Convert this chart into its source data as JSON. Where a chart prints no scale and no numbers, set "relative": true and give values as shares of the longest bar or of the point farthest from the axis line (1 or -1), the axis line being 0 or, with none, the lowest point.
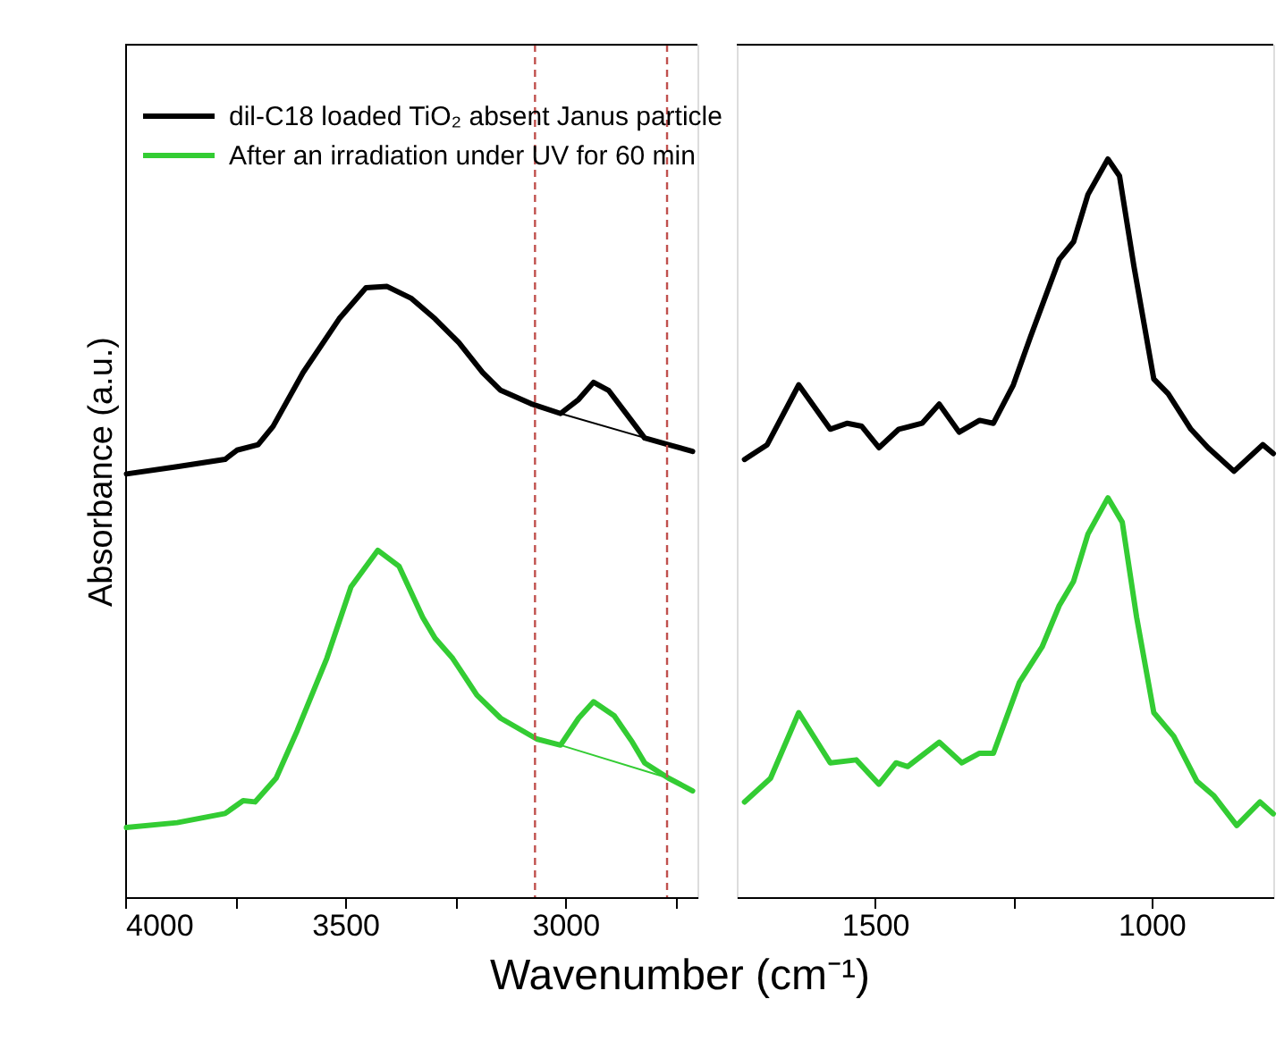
{
  "chart_data": [
    {
      "type": "line",
      "xlabel": "Wavenumber (cm⁻¹)",
      "ylabel": "Absorbance (a.u.)",
      "relative": true,
      "xlim": [
        4000,
        2700
      ],
      "xticks": [
        4000,
        3500,
        3000,
        {
          "value": 3750,
          "label": null
        },
        {
          "value": 3250,
          "label": null
        },
        {
          "value": 2750,
          "label": null
        }
      ],
      "tick_labels": "x",
      "legend": "top left",
      "line_style": "solid",
      "marker": "none",
      "ref_lines": [
        {
          "axis": "x",
          "value": 3069,
          "color": "#c0504d",
          "line_style": "dashed"
        },
        {
          "axis": "x",
          "value": 2769,
          "color": "#c0504d",
          "line_style": "dashed"
        }
      ],
      "series": [
        {
          "name": "dil-C18 loaded TiO₂ absent Janus particle",
          "color": "#000000",
          "x": [
            3997,
            3882,
            3773,
            3746,
            3698,
            3664,
            3596,
            3514,
            3453,
            3405,
            3351,
            3296,
            3242,
            3188,
            3147,
            3078,
            3011,
            2970,
            2936,
            2902,
            2861,
            2820,
            2766,
            2711
          ],
          "values": [
            0.693,
            0.705,
            0.717,
            0.732,
            0.741,
            0.771,
            0.859,
            0.947,
            0.998,
            1,
            0.981,
            0.947,
            0.908,
            0.859,
            0.83,
            0.808,
            0.792,
            0.815,
            0.843,
            0.83,
            0.791,
            0.752,
            0.741,
            0.73
          ]
        },
        {
          "name": "After an irradiation under UV for 60 min",
          "color": "#33cc33",
          "x": [
            3997,
            3882,
            3773,
            3732,
            3705,
            3657,
            3609,
            3542,
            3487,
            3426,
            3378,
            3324,
            3296,
            3256,
            3201,
            3147,
            3065,
            3011,
            2970,
            2936,
            2889,
            2848,
            2820,
            2766,
            2711
          ],
          "values": [
            0.114,
            0.122,
            0.137,
            0.158,
            0.156,
            0.195,
            0.273,
            0.391,
            0.508,
            0.568,
            0.542,
            0.458,
            0.424,
            0.391,
            0.331,
            0.293,
            0.259,
            0.249,
            0.293,
            0.32,
            0.297,
            0.254,
            0.22,
            0.195,
            0.174
          ]
        },
        {
          "color": "#000000",
          "x": [
            3011,
            2766
          ],
          "values": [
            0.792,
            0.741
          ]
        },
        {
          "color": "#33cc33",
          "x": [
            3011,
            2766
          ],
          "values": [
            0.249,
            0.195
          ]
        }
      ]
    },
    {
      "type": "line",
      "relative": true,
      "xlim": [
        1750,
        780
      ],
      "xticks": [
        1500,
        1000,
        {
          "value": 1250,
          "label": null
        }
      ],
      "tick_labels": "x",
      "line_style": "solid",
      "marker": "none",
      "series": [
        {
          "color": "#000000",
          "x": [
            1736,
            1695,
            1638,
            1581,
            1550,
            1524,
            1493,
            1457,
            1415,
            1384,
            1348,
            1311,
            1286,
            1250,
            1219,
            1167,
            1141,
            1115,
            1079,
            1058,
            1032,
            996,
            970,
            929,
            898,
            851,
            799,
            780
          ],
          "values": [
            0.593,
            0.613,
            0.694,
            0.634,
            0.642,
            0.638,
            0.609,
            0.634,
            0.642,
            0.668,
            0.63,
            0.646,
            0.642,
            0.694,
            0.759,
            0.864,
            0.888,
            0.952,
            1,
            0.977,
            0.855,
            0.702,
            0.682,
            0.634,
            0.609,
            0.577,
            0.613,
            0.601
          ]
        },
        {
          "color": "#33cc33",
          "x": [
            1736,
            1689,
            1638,
            1581,
            1534,
            1493,
            1462,
            1441,
            1384,
            1343,
            1311,
            1286,
            1239,
            1198,
            1167,
            1141,
            1115,
            1079,
            1053,
            1027,
            996,
            960,
            918,
            887,
            846,
            804,
            780
          ],
          "values": [
            0.129,
            0.161,
            0.25,
            0.182,
            0.186,
            0.153,
            0.182,
            0.177,
            0.21,
            0.182,
            0.195,
            0.195,
            0.291,
            0.339,
            0.395,
            0.428,
            0.492,
            0.541,
            0.508,
            0.379,
            0.25,
            0.218,
            0.157,
            0.137,
            0.097,
            0.129,
            0.113
          ]
        }
      ]
    }
  ]
}
